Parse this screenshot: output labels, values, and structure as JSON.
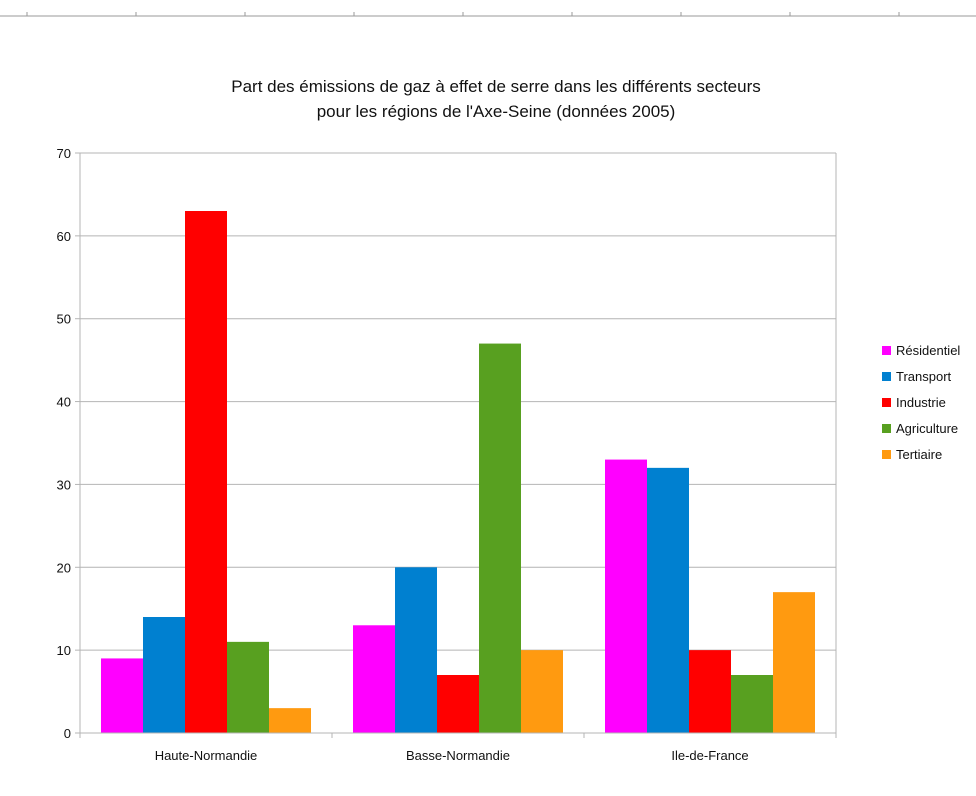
{
  "chart_data": {
    "type": "bar",
    "title": "Part des émissions de gaz à effet de serre dans les différents secteurs",
    "subtitle": "pour les régions de l'Axe-Seine (données 2005)",
    "xlabel": "",
    "ylabel": "",
    "ylim": [
      0,
      70
    ],
    "yticks": [
      "0",
      "10",
      "20",
      "30",
      "40",
      "50",
      "60",
      "70"
    ],
    "grid": true,
    "legend_position": "right",
    "categories": [
      "Haute-Normandie",
      "Basse-Normandie",
      "Ile-de-France"
    ],
    "series": [
      {
        "name": "Résidentiel",
        "color": "#ff00ff",
        "values": [
          9,
          13,
          33
        ]
      },
      {
        "name": "Transport",
        "color": "#0080d0",
        "values": [
          14,
          20,
          32
        ]
      },
      {
        "name": "Industrie",
        "color": "#ff0000",
        "values": [
          63,
          7,
          10
        ]
      },
      {
        "name": "Agriculture",
        "color": "#58a020",
        "values": [
          11,
          47,
          7
        ]
      },
      {
        "name": "Tertiaire",
        "color": "#ff9a10",
        "values": [
          3,
          10,
          17
        ]
      }
    ]
  }
}
